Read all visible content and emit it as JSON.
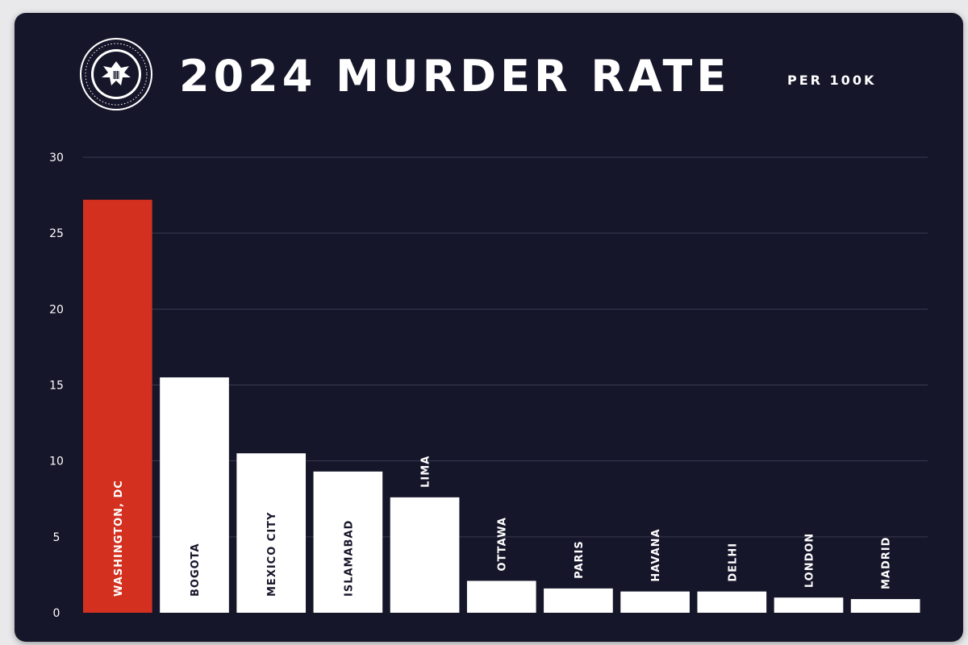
{
  "header": {
    "title": "2024 MURDER RATE",
    "subtitle": "PER 100K",
    "seal_icon": "presidential-seal-icon"
  },
  "colors": {
    "background": "#16162a",
    "highlight_bar": "#d3301f",
    "bar": "#ffffff",
    "grid": "#3a3a52",
    "text": "#ffffff"
  },
  "chart_data": {
    "type": "bar",
    "categories": [
      "WASHINGTON, DC",
      "BOGOTA",
      "MEXICO CITY",
      "ISLAMABAD",
      "LIMA",
      "OTTAWA",
      "PARIS",
      "HAVANA",
      "DELHI",
      "LONDON",
      "MADRID"
    ],
    "values": [
      27.2,
      15.5,
      10.5,
      9.3,
      7.6,
      2.1,
      1.6,
      1.4,
      1.4,
      1.0,
      0.9
    ],
    "highlight_index": 0,
    "ylim": [
      0,
      30
    ],
    "yticks": [
      0,
      5,
      10,
      15,
      20,
      25,
      30
    ],
    "title": "2024 MURDER RATE",
    "subtitle": "PER 100K",
    "xlabel": "",
    "ylabel": "",
    "grid": true,
    "legend": "none"
  }
}
